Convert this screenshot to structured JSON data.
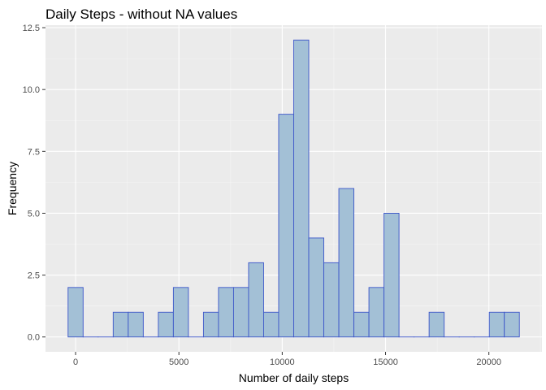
{
  "chart_data": {
    "type": "bar",
    "title": "Daily Steps - without NA values",
    "xlabel": "Number of daily steps",
    "ylabel": "Frequency",
    "bins": [
      {
        "start": -364,
        "end": 364,
        "count": 2
      },
      {
        "start": 364,
        "end": 1092,
        "count": 0
      },
      {
        "start": 1092,
        "end": 1820,
        "count": 0
      },
      {
        "start": 1820,
        "end": 2548,
        "count": 1
      },
      {
        "start": 2548,
        "end": 3276,
        "count": 1
      },
      {
        "start": 3276,
        "end": 4004,
        "count": 0
      },
      {
        "start": 4004,
        "end": 4732,
        "count": 1
      },
      {
        "start": 4732,
        "end": 5460,
        "count": 2
      },
      {
        "start": 5460,
        "end": 6188,
        "count": 0
      },
      {
        "start": 6188,
        "end": 6916,
        "count": 1
      },
      {
        "start": 6916,
        "end": 7644,
        "count": 2
      },
      {
        "start": 7644,
        "end": 8372,
        "count": 2
      },
      {
        "start": 8372,
        "end": 9100,
        "count": 3
      },
      {
        "start": 9100,
        "end": 9828,
        "count": 1
      },
      {
        "start": 9828,
        "end": 10556,
        "count": 9
      },
      {
        "start": 10556,
        "end": 11284,
        "count": 12
      },
      {
        "start": 11284,
        "end": 12012,
        "count": 4
      },
      {
        "start": 12012,
        "end": 12740,
        "count": 3
      },
      {
        "start": 12740,
        "end": 13468,
        "count": 6
      },
      {
        "start": 13468,
        "end": 14196,
        "count": 1
      },
      {
        "start": 14196,
        "end": 14924,
        "count": 2
      },
      {
        "start": 14924,
        "end": 15652,
        "count": 5
      },
      {
        "start": 15652,
        "end": 16380,
        "count": 0
      },
      {
        "start": 16380,
        "end": 17108,
        "count": 0
      },
      {
        "start": 17108,
        "end": 17836,
        "count": 1
      },
      {
        "start": 17836,
        "end": 18564,
        "count": 0
      },
      {
        "start": 18564,
        "end": 19292,
        "count": 0
      },
      {
        "start": 19292,
        "end": 20020,
        "count": 0
      },
      {
        "start": 20020,
        "end": 20748,
        "count": 1
      },
      {
        "start": 20748,
        "end": 21476,
        "count": 1
      }
    ],
    "xlim": [
      -1456,
      22568
    ],
    "ylim": [
      -0.6,
      12.6
    ],
    "x_ticks": [
      0,
      5000,
      10000,
      15000,
      20000
    ],
    "x_tick_labels": [
      "0",
      "5000",
      "10000",
      "15000",
      "20000"
    ],
    "y_ticks": [
      0,
      2.5,
      5,
      7.5,
      10,
      12.5
    ],
    "y_tick_labels": [
      "0.0",
      "2.5",
      "5.0",
      "7.5",
      "10.0",
      "12.5"
    ],
    "grid": true,
    "colors": {
      "panel_background": "#ebebeb",
      "major_grid": "#ffffff",
      "minor_grid": "#f5f5f5",
      "bar_fill": "#a3c0d6",
      "bar_stroke": "#3b55c9",
      "tick_color": "#333333"
    }
  }
}
